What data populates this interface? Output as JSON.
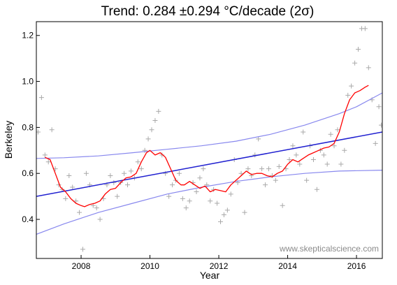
{
  "chart_data": {
    "type": "line",
    "title": "Trend: 0.284 ±0.294 °C/decade (2σ)",
    "xlabel": "Year",
    "ylabel": "Berkeley",
    "xlim": [
      2006.7,
      2016.75
    ],
    "ylim": [
      0.23,
      1.26
    ],
    "x_ticks": [
      2008,
      2010,
      2012,
      2014,
      2016
    ],
    "y_ticks": [
      0.4,
      0.6,
      0.8,
      1.0,
      1.2
    ],
    "y_tick_labels": [
      "0.4",
      "0.6",
      "0.8",
      "1.0",
      "1.2"
    ],
    "credit": "www.skepticalscience.com",
    "grid": false,
    "colors": {
      "monthly": "#a9a9a9",
      "running_mean": "#ff0000",
      "trend": "#2020d0",
      "confidence": "#8888ee",
      "frame": "#000000"
    },
    "monthly_points": [
      [
        2006.75,
        0.78
      ],
      [
        2006.85,
        0.93
      ],
      [
        2006.95,
        0.68
      ],
      [
        2007.05,
        0.65
      ],
      [
        2007.15,
        0.79
      ],
      [
        2007.25,
        0.62
      ],
      [
        2007.35,
        0.55
      ],
      [
        2007.45,
        0.53
      ],
      [
        2007.55,
        0.49
      ],
      [
        2007.65,
        0.59
      ],
      [
        2007.75,
        0.54
      ],
      [
        2007.85,
        0.48
      ],
      [
        2007.95,
        0.43
      ],
      [
        2008.05,
        0.27
      ],
      [
        2008.15,
        0.6
      ],
      [
        2008.25,
        0.55
      ],
      [
        2008.35,
        0.46
      ],
      [
        2008.45,
        0.45
      ],
      [
        2008.55,
        0.4
      ],
      [
        2008.65,
        0.49
      ],
      [
        2008.75,
        0.55
      ],
      [
        2008.85,
        0.59
      ],
      [
        2008.95,
        0.56
      ],
      [
        2009.05,
        0.5
      ],
      [
        2009.15,
        0.56
      ],
      [
        2009.25,
        0.6
      ],
      [
        2009.35,
        0.55
      ],
      [
        2009.45,
        0.61
      ],
      [
        2009.55,
        0.58
      ],
      [
        2009.65,
        0.65
      ],
      [
        2009.75,
        0.62
      ],
      [
        2009.85,
        0.7
      ],
      [
        2009.95,
        0.75
      ],
      [
        2010.05,
        0.79
      ],
      [
        2010.15,
        0.83
      ],
      [
        2010.25,
        0.87
      ],
      [
        2010.35,
        0.68
      ],
      [
        2010.45,
        0.6
      ],
      [
        2010.55,
        0.5
      ],
      [
        2010.65,
        0.55
      ],
      [
        2010.75,
        0.57
      ],
      [
        2010.85,
        0.6
      ],
      [
        2010.95,
        0.49
      ],
      [
        2011.05,
        0.45
      ],
      [
        2011.15,
        0.48
      ],
      [
        2011.25,
        0.56
      ],
      [
        2011.35,
        0.52
      ],
      [
        2011.45,
        0.58
      ],
      [
        2011.55,
        0.62
      ],
      [
        2011.65,
        0.55
      ],
      [
        2011.75,
        0.48
      ],
      [
        2011.85,
        0.53
      ],
      [
        2011.95,
        0.47
      ],
      [
        2012.05,
        0.39
      ],
      [
        2012.15,
        0.42
      ],
      [
        2012.25,
        0.44
      ],
      [
        2012.35,
        0.51
      ],
      [
        2012.45,
        0.66
      ],
      [
        2012.55,
        0.56
      ],
      [
        2012.65,
        0.6
      ],
      [
        2012.75,
        0.43
      ],
      [
        2012.85,
        0.62
      ],
      [
        2012.95,
        0.59
      ],
      [
        2013.05,
        0.68
      ],
      [
        2013.15,
        0.75
      ],
      [
        2013.25,
        0.62
      ],
      [
        2013.35,
        0.55
      ],
      [
        2013.45,
        0.62
      ],
      [
        2013.55,
        0.59
      ],
      [
        2013.65,
        0.57
      ],
      [
        2013.75,
        0.63
      ],
      [
        2013.85,
        0.46
      ],
      [
        2013.95,
        0.62
      ],
      [
        2014.05,
        0.66
      ],
      [
        2014.15,
        0.72
      ],
      [
        2014.25,
        0.68
      ],
      [
        2014.35,
        0.64
      ],
      [
        2014.45,
        0.78
      ],
      [
        2014.55,
        0.57
      ],
      [
        2014.65,
        0.72
      ],
      [
        2014.75,
        0.66
      ],
      [
        2014.85,
        0.53
      ],
      [
        2014.95,
        0.7
      ],
      [
        2015.05,
        0.68
      ],
      [
        2015.15,
        0.64
      ],
      [
        2015.25,
        0.77
      ],
      [
        2015.35,
        0.72
      ],
      [
        2015.45,
        0.79
      ],
      [
        2015.55,
        0.64
      ],
      [
        2015.65,
        0.7
      ],
      [
        2015.75,
        0.94
      ],
      [
        2015.85,
        0.98
      ],
      [
        2015.95,
        1.08
      ],
      [
        2016.05,
        1.14
      ],
      [
        2016.15,
        1.23
      ],
      [
        2016.25,
        1.23
      ],
      [
        2016.35,
        1.06
      ],
      [
        2016.45,
        0.92
      ],
      [
        2016.55,
        0.73
      ],
      [
        2016.65,
        0.89
      ],
      [
        2016.72,
        0.81
      ]
    ],
    "running_mean": [
      [
        2006.95,
        0.67
      ],
      [
        2007.1,
        0.66
      ],
      [
        2007.25,
        0.6
      ],
      [
        2007.4,
        0.54
      ],
      [
        2007.55,
        0.52
      ],
      [
        2007.7,
        0.49
      ],
      [
        2007.85,
        0.47
      ],
      [
        2008.0,
        0.46
      ],
      [
        2008.1,
        0.455
      ],
      [
        2008.25,
        0.465
      ],
      [
        2008.4,
        0.47
      ],
      [
        2008.55,
        0.48
      ],
      [
        2008.7,
        0.51
      ],
      [
        2008.85,
        0.53
      ],
      [
        2009.0,
        0.535
      ],
      [
        2009.15,
        0.56
      ],
      [
        2009.3,
        0.58
      ],
      [
        2009.45,
        0.585
      ],
      [
        2009.6,
        0.6
      ],
      [
        2009.75,
        0.65
      ],
      [
        2009.9,
        0.69
      ],
      [
        2010.0,
        0.7
      ],
      [
        2010.15,
        0.68
      ],
      [
        2010.3,
        0.69
      ],
      [
        2010.45,
        0.67
      ],
      [
        2010.6,
        0.62
      ],
      [
        2010.75,
        0.57
      ],
      [
        2010.9,
        0.55
      ],
      [
        2011.0,
        0.55
      ],
      [
        2011.15,
        0.565
      ],
      [
        2011.3,
        0.55
      ],
      [
        2011.45,
        0.535
      ],
      [
        2011.6,
        0.545
      ],
      [
        2011.75,
        0.52
      ],
      [
        2011.9,
        0.53
      ],
      [
        2012.05,
        0.525
      ],
      [
        2012.2,
        0.52
      ],
      [
        2012.35,
        0.55
      ],
      [
        2012.5,
        0.57
      ],
      [
        2012.65,
        0.59
      ],
      [
        2012.8,
        0.61
      ],
      [
        2012.95,
        0.595
      ],
      [
        2013.1,
        0.6
      ],
      [
        2013.25,
        0.6
      ],
      [
        2013.4,
        0.59
      ],
      [
        2013.55,
        0.585
      ],
      [
        2013.7,
        0.6
      ],
      [
        2013.85,
        0.61
      ],
      [
        2014.0,
        0.64
      ],
      [
        2014.15,
        0.66
      ],
      [
        2014.3,
        0.65
      ],
      [
        2014.45,
        0.665
      ],
      [
        2014.6,
        0.68
      ],
      [
        2014.75,
        0.69
      ],
      [
        2014.9,
        0.7
      ],
      [
        2015.05,
        0.71
      ],
      [
        2015.2,
        0.715
      ],
      [
        2015.35,
        0.73
      ],
      [
        2015.5,
        0.78
      ],
      [
        2015.65,
        0.86
      ],
      [
        2015.8,
        0.92
      ],
      [
        2015.95,
        0.95
      ],
      [
        2016.1,
        0.96
      ],
      [
        2016.25,
        0.975
      ],
      [
        2016.35,
        0.983
      ]
    ],
    "trend_line": [
      [
        2006.7,
        0.5
      ],
      [
        2016.75,
        0.78
      ]
    ],
    "upper_bound": [
      [
        2006.7,
        0.665
      ],
      [
        2007.5,
        0.668
      ],
      [
        2008.5,
        0.676
      ],
      [
        2009.5,
        0.69
      ],
      [
        2010.5,
        0.705
      ],
      [
        2011.5,
        0.72
      ],
      [
        2012.5,
        0.74
      ],
      [
        2013.5,
        0.77
      ],
      [
        2014.5,
        0.81
      ],
      [
        2015.5,
        0.86
      ],
      [
        2016.0,
        0.89
      ],
      [
        2016.75,
        0.95
      ]
    ],
    "lower_bound": [
      [
        2006.7,
        0.335
      ],
      [
        2007.5,
        0.38
      ],
      [
        2008.5,
        0.43
      ],
      [
        2009.5,
        0.47
      ],
      [
        2010.5,
        0.51
      ],
      [
        2011.5,
        0.54
      ],
      [
        2012.5,
        0.565
      ],
      [
        2013.5,
        0.585
      ],
      [
        2014.5,
        0.6
      ],
      [
        2015.5,
        0.61
      ],
      [
        2016.75,
        0.614
      ]
    ]
  }
}
